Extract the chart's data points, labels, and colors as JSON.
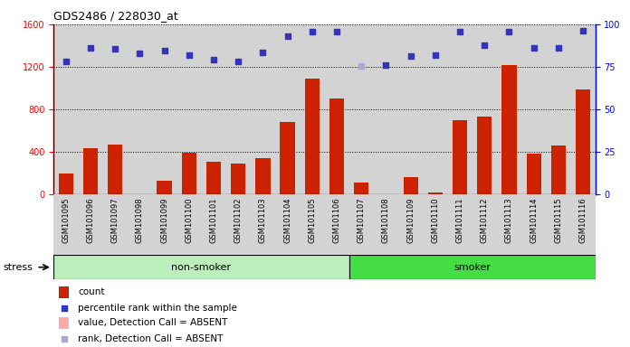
{
  "title": "GDS2486 / 228030_at",
  "samples": [
    "GSM101095",
    "GSM101096",
    "GSM101097",
    "GSM101098",
    "GSM101099",
    "GSM101100",
    "GSM101101",
    "GSM101102",
    "GSM101103",
    "GSM101104",
    "GSM101105",
    "GSM101106",
    "GSM101107",
    "GSM101108",
    "GSM101109",
    "GSM101110",
    "GSM101111",
    "GSM101112",
    "GSM101113",
    "GSM101114",
    "GSM101115",
    "GSM101116"
  ],
  "counts": [
    200,
    430,
    470,
    0,
    130,
    390,
    310,
    290,
    340,
    680,
    1090,
    900,
    110,
    0,
    160,
    20,
    700,
    730,
    1220,
    380,
    460,
    990
  ],
  "absent_count_indices": [
    3
  ],
  "absent_rank_indices": [
    12
  ],
  "percentile_ranks": [
    1250,
    1380,
    1370,
    1330,
    1350,
    1310,
    1270,
    1250,
    1335,
    1490,
    1530,
    1530,
    1210,
    1215,
    1300,
    1310,
    1530,
    1400,
    1530,
    1380,
    1380,
    1540
  ],
  "group_nonsmoker_count": 12,
  "group_smoker_count": 10,
  "bar_color": "#cc2200",
  "absent_bar_color": "#ffaaaa",
  "rank_color": "#3333bb",
  "absent_rank_color": "#aaaacc",
  "ylim_left": [
    0,
    1600
  ],
  "ylim_right": [
    0,
    100
  ],
  "yticks_left": [
    0,
    400,
    800,
    1200,
    1600
  ],
  "yticks_right": [
    0,
    25,
    50,
    75,
    100
  ],
  "bg_color": "#d3d3d3",
  "nonsmoker_color": "#bbeebb",
  "smoker_color": "#44dd44",
  "stress_label": "stress"
}
